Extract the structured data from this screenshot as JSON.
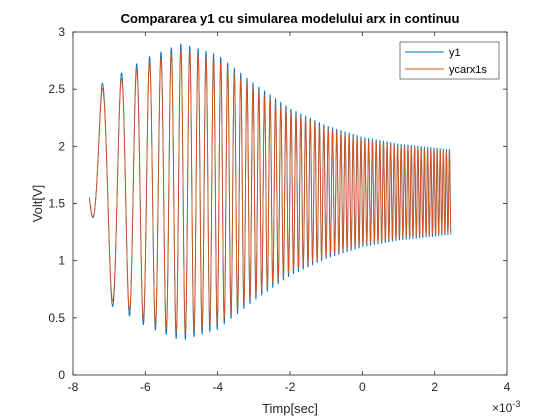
{
  "chart_data": {
    "type": "line",
    "title": "Compararea y1 cu simularea modelului arx in continuu",
    "xlabel": "Timp[sec]",
    "ylabel": "Volt[V]",
    "xlim": [
      -8,
      4
    ],
    "ylim": [
      0,
      3
    ],
    "x_scale_label": "×10",
    "x_scale_exponent": "-3",
    "xticks": [
      -8,
      -6,
      -4,
      -2,
      0,
      2,
      4
    ],
    "xtick_labels": [
      "-8",
      "-6",
      "-4",
      "-2",
      "0",
      "2",
      "4"
    ],
    "yticks": [
      0,
      0.5,
      1,
      1.5,
      2,
      2.5,
      3
    ],
    "ytick_labels": [
      "0",
      "0.5",
      "1",
      "1.5",
      "2",
      "2.5",
      "3"
    ],
    "legend_position": "top-right",
    "signal": {
      "x_start": -7.55,
      "x_end": 2.45,
      "offset": 1.6,
      "freq_start_cycles_per_unit": 1.2,
      "freq_end_cycles_per_unit": 12.0,
      "envelope_points": [
        {
          "x": -7.55,
          "amp": 0.05
        },
        {
          "x": -7.4,
          "amp": 0.45
        },
        {
          "x": -7.2,
          "amp": 0.95
        },
        {
          "x": -6.6,
          "amp": 1.05
        },
        {
          "x": -6.0,
          "amp": 1.17
        },
        {
          "x": -5.0,
          "amp": 1.3
        },
        {
          "x": -4.0,
          "amp": 1.2
        },
        {
          "x": -3.0,
          "amp": 0.95
        },
        {
          "x": -2.0,
          "amp": 0.73
        },
        {
          "x": -1.0,
          "amp": 0.58
        },
        {
          "x": 0.0,
          "amp": 0.48
        },
        {
          "x": 1.0,
          "amp": 0.42
        },
        {
          "x": 2.45,
          "amp": 0.37
        }
      ]
    },
    "series": [
      {
        "name": "y1",
        "color": "#0072BD",
        "amp_scale": 1.0
      },
      {
        "name": "ycarx1s",
        "color": "#D95319",
        "amp_scale": 0.955
      }
    ]
  }
}
